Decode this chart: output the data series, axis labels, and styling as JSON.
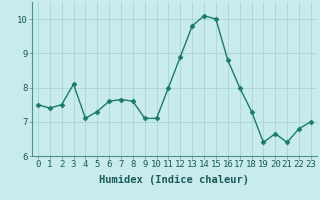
{
  "x": [
    0,
    1,
    2,
    3,
    4,
    5,
    6,
    7,
    8,
    9,
    10,
    11,
    12,
    13,
    14,
    15,
    16,
    17,
    18,
    19,
    20,
    21,
    22,
    23
  ],
  "y": [
    7.5,
    7.4,
    7.5,
    8.1,
    7.1,
    7.3,
    7.6,
    7.65,
    7.6,
    7.1,
    7.1,
    8.0,
    8.9,
    9.8,
    10.1,
    10.0,
    8.8,
    8.0,
    7.3,
    6.4,
    6.65,
    6.4,
    6.8,
    7.0
  ],
  "line_color": "#1a7a6e",
  "marker": "D",
  "marker_size": 2.5,
  "background_color": "#c8ecec",
  "grid_color": "#aed4d4",
  "spine_color": "#4a9090",
  "xlabel": "Humidex (Indice chaleur)",
  "xlabel_fontsize": 7.5,
  "ylim": [
    6,
    10.5
  ],
  "xlim": [
    -0.5,
    23.5
  ],
  "yticks": [
    6,
    7,
    8,
    9,
    10
  ],
  "xticks": [
    0,
    1,
    2,
    3,
    4,
    5,
    6,
    7,
    8,
    9,
    10,
    11,
    12,
    13,
    14,
    15,
    16,
    17,
    18,
    19,
    20,
    21,
    22,
    23
  ],
  "tick_fontsize": 6.5,
  "line_width": 1.0
}
